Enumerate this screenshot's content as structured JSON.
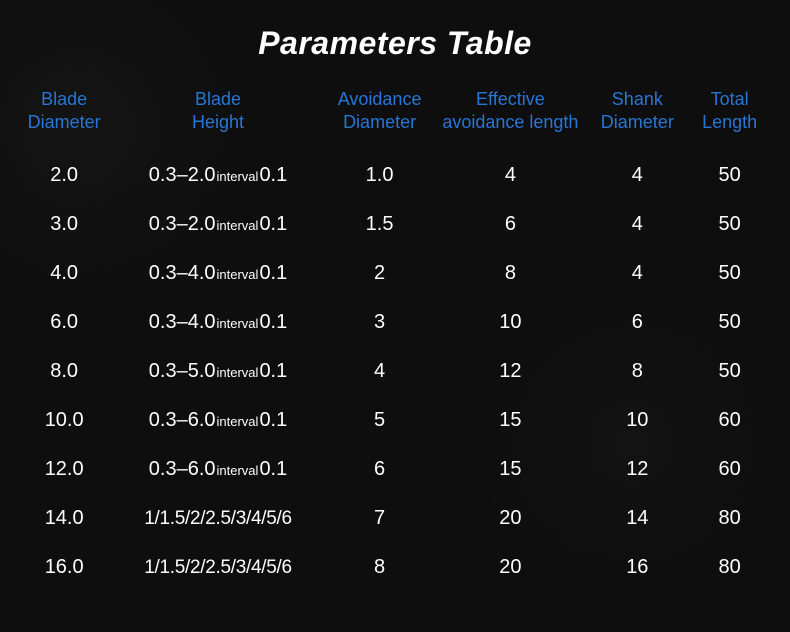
{
  "title": "Parameters Table",
  "columns": [
    {
      "key": "blade_diameter",
      "label": "Blade\nDiameter"
    },
    {
      "key": "blade_height",
      "label": "Blade\nHeight"
    },
    {
      "key": "avoidance_diameter",
      "label": "Avoidance\nDiameter"
    },
    {
      "key": "effective_avoidance_length",
      "label": "Effective\navoidance length"
    },
    {
      "key": "shank_diameter",
      "label": "Shank\nDiameter"
    },
    {
      "key": "total_length",
      "label": "Total\nLength"
    }
  ],
  "rows": [
    {
      "blade_diameter": "2.0",
      "blade_height": {
        "type": "interval",
        "range": "0.3–2.0",
        "label": "interval",
        "step": "0.1"
      },
      "avoidance_diameter": "1.0",
      "effective_avoidance_length": "4",
      "shank_diameter": "4",
      "total_length": "50"
    },
    {
      "blade_diameter": "3.0",
      "blade_height": {
        "type": "interval",
        "range": "0.3–2.0",
        "label": "interval",
        "step": "0.1"
      },
      "avoidance_diameter": "1.5",
      "effective_avoidance_length": "6",
      "shank_diameter": "4",
      "total_length": "50"
    },
    {
      "blade_diameter": "4.0",
      "blade_height": {
        "type": "interval",
        "range": "0.3–4.0",
        "label": "interval",
        "step": "0.1"
      },
      "avoidance_diameter": "2",
      "effective_avoidance_length": "8",
      "shank_diameter": "4",
      "total_length": "50"
    },
    {
      "blade_diameter": "6.0",
      "blade_height": {
        "type": "interval",
        "range": "0.3–4.0",
        "label": "interval",
        "step": "0.1"
      },
      "avoidance_diameter": "3",
      "effective_avoidance_length": "10",
      "shank_diameter": "6",
      "total_length": "50"
    },
    {
      "blade_diameter": "8.0",
      "blade_height": {
        "type": "interval",
        "range": "0.3–5.0",
        "label": "interval",
        "step": "0.1"
      },
      "avoidance_diameter": "4",
      "effective_avoidance_length": "12",
      "shank_diameter": "8",
      "total_length": "50"
    },
    {
      "blade_diameter": "10.0",
      "blade_height": {
        "type": "interval",
        "range": "0.3–6.0",
        "label": "interval",
        "step": "0.1"
      },
      "avoidance_diameter": "5",
      "effective_avoidance_length": "15",
      "shank_diameter": "10",
      "total_length": "60"
    },
    {
      "blade_diameter": "12.0",
      "blade_height": {
        "type": "interval",
        "range": "0.3–6.0",
        "label": "interval",
        "step": "0.1"
      },
      "avoidance_diameter": "6",
      "effective_avoidance_length": "15",
      "shank_diameter": "12",
      "total_length": "60"
    },
    {
      "blade_diameter": "14.0",
      "blade_height": {
        "type": "list",
        "text": "1/1.5/2/2.5/3/4/5/6"
      },
      "avoidance_diameter": "7",
      "effective_avoidance_length": "20",
      "shank_diameter": "14",
      "total_length": "80"
    },
    {
      "blade_diameter": "16.0",
      "blade_height": {
        "type": "list",
        "text": "1/1.5/2/2.5/3/4/5/6"
      },
      "avoidance_diameter": "8",
      "effective_avoidance_length": "20",
      "shank_diameter": "16",
      "total_length": "80"
    }
  ],
  "style": {
    "background_color": "#0a0a0a",
    "title_color": "#ffffff",
    "title_fontsize": 32,
    "header_color": "#2574d6",
    "header_fontsize": 18,
    "cell_color": "#ffffff",
    "cell_fontsize": 20,
    "interval_label_fontsize": 13
  }
}
